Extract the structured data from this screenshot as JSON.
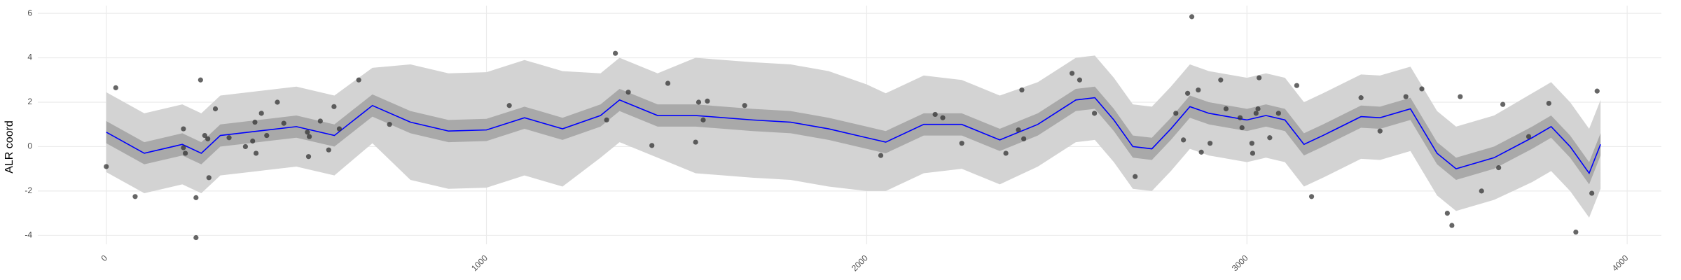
{
  "chart_data": {
    "type": "line",
    "y_label": "ALR coord",
    "grid": true,
    "xlim": [
      -180,
      4090
    ],
    "xticks": [
      0,
      1000,
      2000,
      3000,
      4000
    ],
    "ylim": [
      -4.4,
      6.35
    ],
    "yticks": [
      -4,
      -2,
      0,
      2,
      4,
      6
    ],
    "x": [
      0,
      100,
      200,
      250,
      300,
      400,
      500,
      600,
      700,
      800,
      900,
      1000,
      1100,
      1200,
      1300,
      1350,
      1450,
      1550,
      1700,
      1800,
      1900,
      2000,
      2050,
      2150,
      2250,
      2350,
      2450,
      2550,
      2600,
      2650,
      2700,
      2750,
      2800,
      2850,
      2900,
      3000,
      3050,
      3100,
      3150,
      3200,
      3300,
      3350,
      3430,
      3500,
      3550,
      3650,
      3750,
      3800,
      3850,
      3900,
      3930
    ],
    "bands": [
      {
        "color": "#d3d3d3",
        "lower": [
          -1.15,
          -2.1,
          -1.7,
          -2.1,
          -1.3,
          -1.1,
          -0.9,
          -1.3,
          0.15,
          -1.5,
          -1.9,
          -1.85,
          -1.3,
          -1.8,
          -0.5,
          0.2,
          -0.5,
          -1.2,
          -1.4,
          -1.5,
          -1.8,
          -2.0,
          -2.0,
          -1.2,
          -1.0,
          -1.7,
          -0.9,
          0.2,
          0.3,
          -0.7,
          -1.9,
          -2.0,
          -1.1,
          -0.1,
          -0.4,
          -0.7,
          -0.5,
          -0.7,
          -1.8,
          -1.4,
          -0.55,
          -0.6,
          -0.2,
          -2.2,
          -2.9,
          -2.4,
          -1.6,
          -1.1,
          -2.0,
          -3.2,
          -1.9
        ],
        "upper": [
          2.45,
          1.5,
          1.9,
          1.5,
          2.3,
          2.5,
          2.7,
          2.3,
          3.55,
          3.7,
          3.3,
          3.35,
          3.9,
          3.4,
          3.3,
          4.0,
          3.3,
          4.0,
          3.8,
          3.7,
          3.4,
          2.8,
          2.4,
          3.2,
          3.0,
          2.3,
          2.9,
          4.0,
          4.1,
          3.1,
          1.9,
          1.8,
          2.7,
          3.7,
          3.4,
          3.1,
          3.3,
          3.1,
          2.0,
          2.4,
          3.25,
          3.2,
          3.6,
          1.6,
          0.9,
          1.4,
          2.4,
          2.9,
          2.0,
          0.8,
          2.1
        ]
      },
      {
        "color": "#a9a9a9",
        "lower": [
          0.15,
          -0.8,
          -0.4,
          -0.8,
          0.0,
          0.2,
          0.4,
          0.0,
          1.35,
          0.6,
          0.2,
          0.25,
          0.8,
          0.3,
          0.9,
          1.6,
          0.9,
          0.9,
          0.7,
          0.6,
          0.3,
          -0.1,
          -0.3,
          0.5,
          0.5,
          -0.2,
          0.5,
          1.6,
          1.7,
          0.7,
          -0.5,
          -0.6,
          0.3,
          1.3,
          1.0,
          0.7,
          0.9,
          0.7,
          -0.4,
          0.0,
          0.85,
          0.8,
          1.2,
          -0.8,
          -1.5,
          -1.0,
          -0.1,
          0.4,
          -0.5,
          -1.7,
          -0.4
        ],
        "upper": [
          1.15,
          0.2,
          0.6,
          0.2,
          1.0,
          1.2,
          1.4,
          1.0,
          2.35,
          1.6,
          1.2,
          1.25,
          1.8,
          1.3,
          1.9,
          2.6,
          1.9,
          1.9,
          1.7,
          1.6,
          1.3,
          0.9,
          0.7,
          1.5,
          1.5,
          0.8,
          1.5,
          2.6,
          2.7,
          1.7,
          0.5,
          0.4,
          1.3,
          2.3,
          2.0,
          1.7,
          1.9,
          1.7,
          0.6,
          1.0,
          1.85,
          1.8,
          2.2,
          0.2,
          -0.5,
          0.0,
          0.9,
          1.4,
          0.5,
          -0.7,
          0.6
        ]
      }
    ],
    "series": [
      {
        "color": "#0000ff",
        "values": [
          0.65,
          -0.3,
          0.1,
          -0.3,
          0.5,
          0.7,
          0.9,
          0.5,
          1.85,
          1.1,
          0.7,
          0.75,
          1.3,
          0.8,
          1.4,
          2.1,
          1.4,
          1.4,
          1.2,
          1.1,
          0.8,
          0.4,
          0.2,
          1.0,
          1.0,
          0.3,
          1.0,
          2.1,
          2.2,
          1.2,
          0.0,
          -0.1,
          0.8,
          1.8,
          1.5,
          1.2,
          1.4,
          1.2,
          0.1,
          0.5,
          1.35,
          1.3,
          1.7,
          -0.3,
          -1.0,
          -0.5,
          0.4,
          0.9,
          0.0,
          -1.2,
          0.1
        ]
      }
    ],
    "points": {
      "color": "#333333",
      "x": [
        0,
        25,
        76,
        203,
        203,
        208,
        236,
        236,
        248,
        259,
        267,
        270,
        287,
        323,
        366,
        385,
        391,
        394,
        408,
        422,
        450,
        467,
        529,
        532,
        534,
        563,
        585,
        599,
        613,
        664,
        745,
        1060,
        1316,
        1339,
        1373,
        1435,
        1477,
        1550,
        1558,
        1570,
        1581,
        1679,
        2037,
        2180,
        2200,
        2250,
        2366,
        2399,
        2408,
        2413,
        2540,
        2560,
        2599,
        2706,
        2813,
        2833,
        2844,
        2855,
        2872,
        2880,
        2903,
        2931,
        2945,
        2982,
        2987,
        3013,
        3015,
        3024,
        3029,
        3032,
        3060,
        3083,
        3131,
        3170,
        3300,
        3350,
        3418,
        3460,
        3527,
        3539,
        3561,
        3617,
        3662,
        3673,
        3741,
        3794,
        3865,
        3907,
        3921
      ],
      "y": [
        -0.9,
        2.65,
        -2.25,
        0.8,
        -0.05,
        -0.3,
        -2.3,
        -4.1,
        3.0,
        0.5,
        0.35,
        -1.4,
        1.7,
        0.4,
        0.0,
        0.25,
        1.1,
        -0.3,
        1.5,
        0.5,
        2.0,
        1.05,
        0.65,
        -0.45,
        0.45,
        1.15,
        -0.15,
        1.8,
        0.8,
        3.0,
        1.0,
        1.85,
        1.2,
        4.2,
        2.45,
        0.05,
        2.85,
        0.2,
        2.0,
        1.2,
        2.05,
        1.85,
        -0.4,
        1.45,
        1.3,
        0.15,
        -0.3,
        0.75,
        2.55,
        0.35,
        3.3,
        3.0,
        1.5,
        -1.35,
        1.5,
        0.3,
        2.4,
        5.85,
        2.55,
        -0.25,
        0.15,
        3.0,
        1.7,
        1.3,
        0.85,
        0.15,
        -0.3,
        1.5,
        1.7,
        3.1,
        0.4,
        1.5,
        2.75,
        -2.25,
        2.2,
        0.7,
        2.25,
        2.6,
        -3.0,
        -3.55,
        2.25,
        -2.0,
        -0.95,
        1.9,
        0.45,
        1.95,
        -3.85,
        -2.1,
        2.5
      ]
    }
  }
}
